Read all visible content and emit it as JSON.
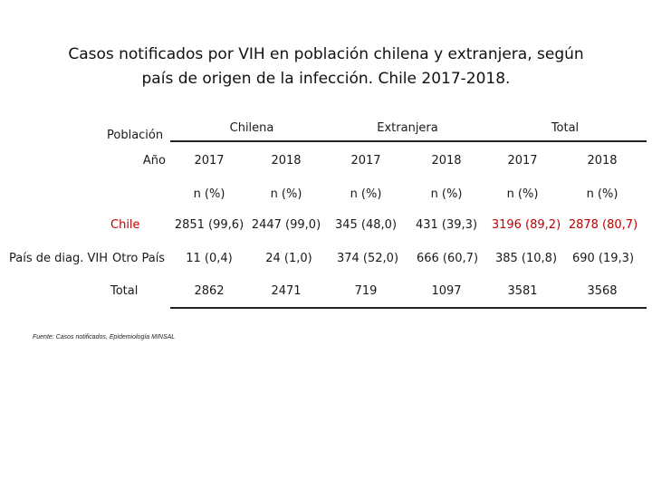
{
  "title": {
    "line1": "Casos notificados por VIH en población chilena y extranjera, según",
    "line2": "país de origen de la infección. Chile 2017-2018."
  },
  "table": {
    "poblacion_label": "Población",
    "groups": [
      "Chilena",
      "Extranjera",
      "Total"
    ],
    "anio_label": "Año",
    "years": [
      "2017",
      "2018",
      "2017",
      "2018",
      "2017",
      "2018"
    ],
    "unit": "n (%)",
    "side_label": "País de diag. VIH",
    "rows": [
      {
        "label": "Chile",
        "cells": [
          "2851 (99,6)",
          "2447 (99,0)",
          "345 (48,0)",
          "431 (39,3)",
          "3196 (89,2)",
          "2878 (80,7)"
        ]
      },
      {
        "label": "Otro País",
        "cells": [
          "11 (0,4)",
          "24 (1,0)",
          "374 (52,0)",
          "666 (60,7)",
          "385 (10,8)",
          "690 (19,3)"
        ]
      },
      {
        "label": "Total",
        "cells": [
          "2862",
          "2471",
          "719",
          "1097",
          "3581",
          "3568"
        ]
      }
    ],
    "highlight_color": "#c00000"
  },
  "source": "Fuente: Casos notificados, Epidemiología MINSAL"
}
